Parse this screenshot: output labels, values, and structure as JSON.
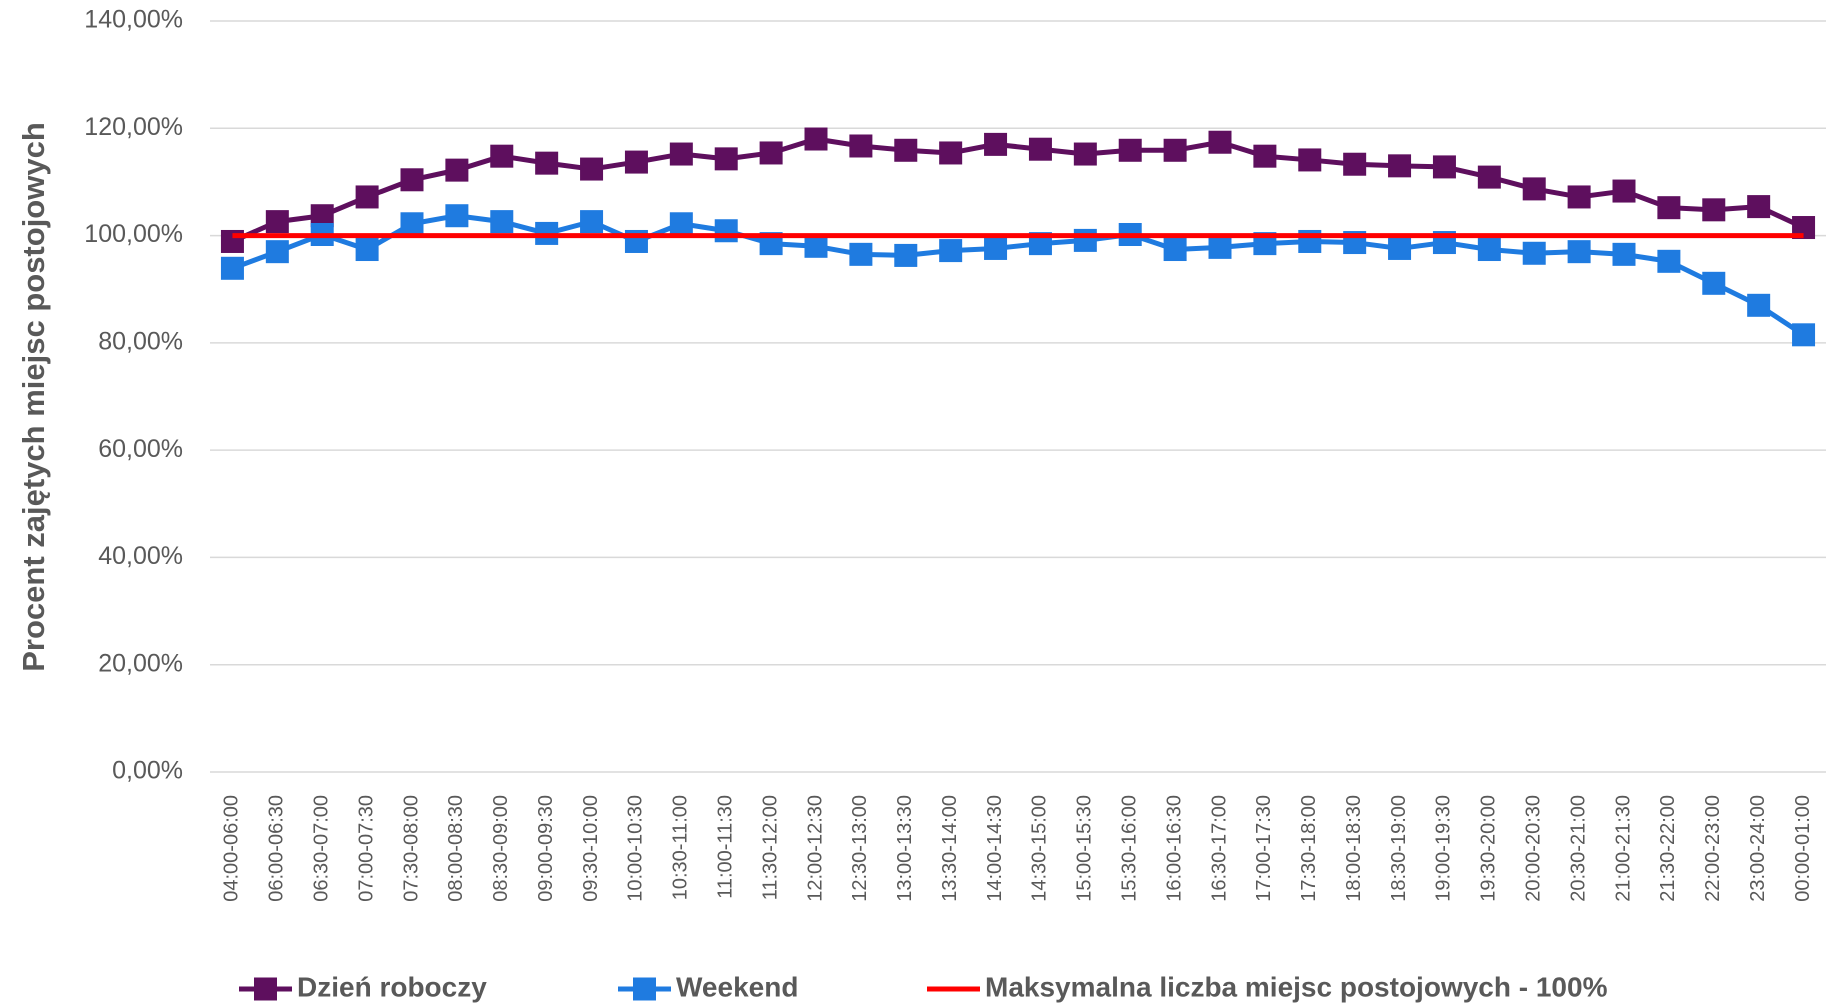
{
  "chart_data": {
    "type": "line",
    "y_axis_label": "Procent zajętych miejsc postojowych",
    "categories": [
      "04:00-06:00",
      "06:00-06:30",
      "06:30-07:00",
      "07:00-07:30",
      "07:30-08:00",
      "08:00-08:30",
      "08:30-09:00",
      "09:00-09:30",
      "09:30-10:00",
      "10:00-10:30",
      "10:30-11:00",
      "11:00-11:30",
      "11:30-12:00",
      "12:00-12:30",
      "12:30-13:00",
      "13:00-13:30",
      "13:30-14:00",
      "14:00-14:30",
      "14:30-15:00",
      "15:00-15:30",
      "15:30-16:00",
      "16:00-16:30",
      "16:30-17:00",
      "17:00-17:30",
      "17:30-18:00",
      "18:00-18:30",
      "18:30-19:00",
      "19:00-19:30",
      "19:30-20:00",
      "20:00-20:30",
      "20:30-21:00",
      "21:00-21:30",
      "21:30-22:00",
      "22:00-23:00",
      "23:00-24:00",
      "00:00-01:00"
    ],
    "series": [
      {
        "name": "Dzień roboczy",
        "color": "#5e0f5e",
        "marker": "square",
        "values": [
          98.9,
          102.6,
          103.7,
          107.2,
          110.4,
          112.2,
          114.8,
          113.5,
          112.4,
          113.7,
          115.2,
          114.3,
          115.4,
          118.0,
          116.7,
          115.9,
          115.4,
          117.0,
          116.1,
          115.2,
          115.9,
          115.9,
          117.4,
          114.8,
          114.1,
          113.3,
          113.0,
          112.8,
          110.9,
          108.7,
          107.2,
          108.3,
          105.2,
          104.8,
          105.4,
          101.5
        ]
      },
      {
        "name": "Weekend",
        "color": "#1f7be0",
        "marker": "square",
        "values": [
          93.9,
          97.0,
          100.2,
          97.4,
          102.2,
          103.7,
          102.6,
          100.4,
          102.6,
          98.9,
          102.2,
          100.9,
          98.5,
          98.0,
          96.5,
          96.3,
          97.2,
          97.6,
          98.5,
          99.1,
          100.2,
          97.4,
          97.8,
          98.5,
          98.9,
          98.7,
          97.6,
          98.7,
          97.4,
          96.7,
          97.0,
          96.5,
          95.2,
          91.1,
          87.0,
          81.5
        ]
      },
      {
        "name": "Maksymalna liczba miejsc postojowych - 100%",
        "color": "#ff0000",
        "marker": "none",
        "values": [
          100,
          100,
          100,
          100,
          100,
          100,
          100,
          100,
          100,
          100,
          100,
          100,
          100,
          100,
          100,
          100,
          100,
          100,
          100,
          100,
          100,
          100,
          100,
          100,
          100,
          100,
          100,
          100,
          100,
          100,
          100,
          100,
          100,
          100,
          100,
          100
        ]
      }
    ],
    "ylim": [
      0,
      140
    ],
    "yticks": [
      {
        "value": 0,
        "label": "0,00%"
      },
      {
        "value": 20,
        "label": "20,00%"
      },
      {
        "value": 40,
        "label": "40,00%"
      },
      {
        "value": 60,
        "label": "60,00%"
      },
      {
        "value": 80,
        "label": "80,00%"
      },
      {
        "value": 100,
        "label": "100,00%"
      },
      {
        "value": 120,
        "label": "120,00%"
      },
      {
        "value": 140,
        "label": "140,00%"
      }
    ],
    "grid": true,
    "legend": "bottom"
  }
}
